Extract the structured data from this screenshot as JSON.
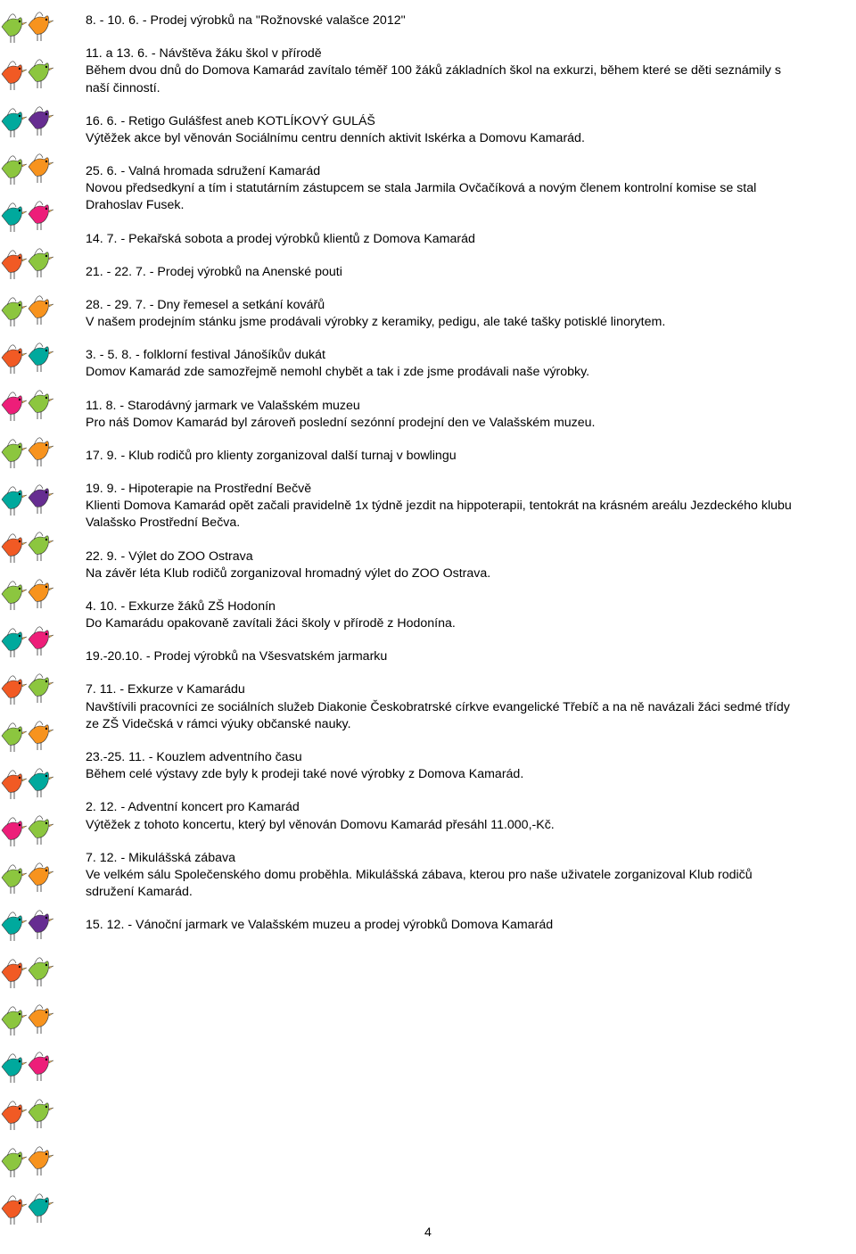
{
  "page_number": "4",
  "sidebar": {
    "pair_count": 26,
    "colors": [
      [
        "#8cc63f",
        "#f7931e"
      ],
      [
        "#f15a24",
        "#8cc63f"
      ],
      [
        "#00a99d",
        "#662d91"
      ],
      [
        "#8cc63f",
        "#f7931e"
      ],
      [
        "#00a99d",
        "#ed1e79"
      ],
      [
        "#f15a24",
        "#8cc63f"
      ],
      [
        "#8cc63f",
        "#f7931e"
      ],
      [
        "#f15a24",
        "#00a99d"
      ],
      [
        "#ed1e79",
        "#8cc63f"
      ],
      [
        "#8cc63f",
        "#f7931e"
      ],
      [
        "#00a99d",
        "#662d91"
      ],
      [
        "#f15a24",
        "#8cc63f"
      ],
      [
        "#8cc63f",
        "#f7931e"
      ],
      [
        "#00a99d",
        "#ed1e79"
      ],
      [
        "#f15a24",
        "#8cc63f"
      ],
      [
        "#8cc63f",
        "#f7931e"
      ],
      [
        "#f15a24",
        "#00a99d"
      ],
      [
        "#ed1e79",
        "#8cc63f"
      ],
      [
        "#8cc63f",
        "#f7931e"
      ],
      [
        "#00a99d",
        "#662d91"
      ],
      [
        "#f15a24",
        "#8cc63f"
      ],
      [
        "#8cc63f",
        "#f7931e"
      ],
      [
        "#00a99d",
        "#ed1e79"
      ],
      [
        "#f15a24",
        "#8cc63f"
      ],
      [
        "#8cc63f",
        "#f7931e"
      ],
      [
        "#f15a24",
        "#00a99d"
      ]
    ]
  },
  "entries": [
    {
      "title": "8. - 10. 6. - Prodej výrobků na \"Rožnovské valašce 2012\"",
      "body": ""
    },
    {
      "title": "11. a 13. 6. - Návštěva žáku škol v přírodě",
      "body": "Během dvou dnů do Domova Kamarád zavítalo téměř 100 žáků základních škol na exkurzi, během které se děti seznámily s naší činností."
    },
    {
      "title": "16. 6. - Retigo Gulášfest aneb KOTLÍKOVÝ GULÁŠ",
      "body": "Výtěžek akce byl věnován Sociálnímu centru denních aktivit Iskérka a Domovu Kamarád."
    },
    {
      "title": "25. 6. - Valná hromada sdružení Kamarád",
      "body": "Novou předsedkyní a tím i statutárním zástupcem se stala Jarmila Ovčačíková a novým členem kontrolní komise se stal Drahoslav Fusek."
    },
    {
      "title": "14. 7. - Pekařská sobota a prodej výrobků klientů z Domova Kamarád",
      "body": ""
    },
    {
      "title": "21. - 22. 7. - Prodej výrobků na Anenské pouti",
      "body": ""
    },
    {
      "title": "28. - 29. 7. - Dny řemesel a setkání kovářů",
      "body": "V našem prodejním stánku jsme prodávali výrobky z keramiky, pedigu, ale také tašky potisklé linorytem."
    },
    {
      "title": "3. - 5. 8. - folklorní festival Jánošíkův dukát",
      "body": "Domov Kamarád zde samozřejmě nemohl chybět a tak i zde jsme prodávali naše výrobky."
    },
    {
      "title": "11. 8. - Starodávný jarmark ve Valašském muzeu",
      "body": "Pro náš Domov Kamarád byl zároveň poslední sezónní prodejní den ve Valašském muzeu."
    },
    {
      "title": "17. 9. - Klub rodičů pro klienty zorganizoval další turnaj v bowlingu",
      "body": ""
    },
    {
      "title": "19. 9. - Hipoterapie na Prostřední Bečvě",
      "body": "Klienti Domova Kamarád opět začali pravidelně 1x týdně jezdit na hippoterapii, tentokrát na krásném areálu Jezdeckého klubu Valašsko Prostřední Bečva."
    },
    {
      "title": "22. 9. - Výlet do ZOO Ostrava",
      "body": "Na závěr léta Klub rodičů zorganizoval hromadný výlet do ZOO Ostrava."
    },
    {
      "title": "4. 10. - Exkurze žáků ZŠ Hodonín",
      "body": "Do Kamarádu opakovaně zavítali žáci školy v přírodě z Hodonína."
    },
    {
      "title": "19.-20.10. - Prodej výrobků na Všesvatském jarmarku",
      "body": ""
    },
    {
      "title": "7. 11. - Exkurze v Kamarádu",
      "body": "Navštívili pracovníci ze sociálních služeb Diakonie Českobratrské církve evangelické Třebíč a na ně navázali žáci sedmé třídy ze ZŠ Videčská v rámci výuky občanské nauky."
    },
    {
      "title": "23.-25. 11. - Kouzlem adventního času",
      "body": "Během celé výstavy zde byly k prodeji také nové výrobky z Domova Kamarád."
    },
    {
      "title": "2. 12. - Adventní koncert pro Kamarád",
      "body": "Výtěžek z tohoto koncertu, který byl věnován Domovu Kamarád přesáhl 11.000,-Kč."
    },
    {
      "title": "7. 12. - Mikulášská zábava",
      "body": "Ve velkém sálu Společenského domu proběhla. Mikulášská zábava, kterou pro naše uživatele zorganizoval Klub rodičů sdružení Kamarád."
    },
    {
      "title": "15. 12. - Vánoční jarmark ve Valašském muzeu a prodej výrobků Domova Kamarád",
      "body": ""
    }
  ]
}
